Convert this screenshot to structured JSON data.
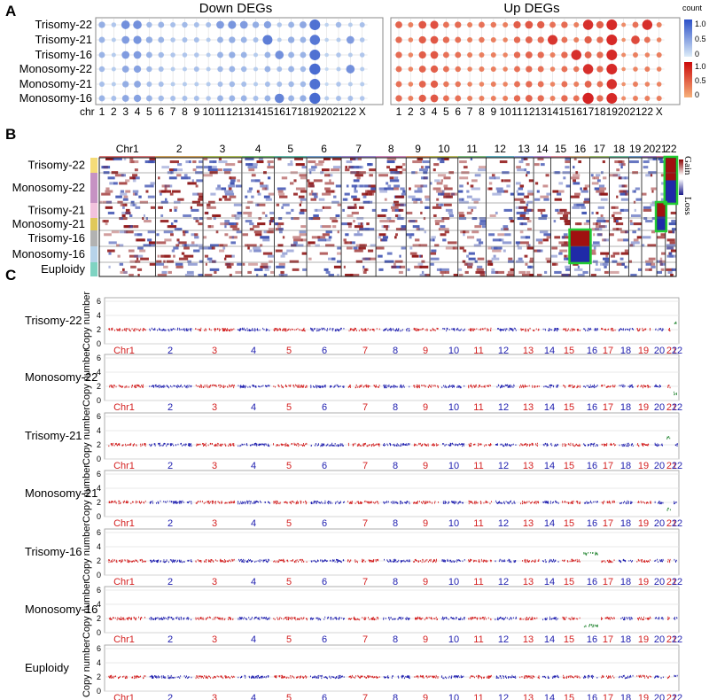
{
  "panels": {
    "a": "A",
    "b": "B",
    "c": "C"
  },
  "colors": {
    "down_high": "#3a5fcd",
    "down_low": "#cfe3f5",
    "up_high": "#d01010",
    "up_low": "#f4a070",
    "gain": "#a01010",
    "loss": "#2323a0",
    "cn_red": "#d42020",
    "cn_blue": "#2020b0",
    "highlight": "#22cc33"
  },
  "chart_data": [
    {
      "type": "scatter",
      "title": "Down DEGs",
      "xlabel": "chr",
      "categories": [
        "1",
        "2",
        "3",
        "4",
        "5",
        "6",
        "7",
        "8",
        "9",
        "10",
        "11",
        "12",
        "13",
        "14",
        "15",
        "16",
        "17",
        "18",
        "19",
        "20",
        "21",
        "22",
        "X"
      ],
      "rows": [
        "Trisomy-22",
        "Trisomy-21",
        "Trisomy-16",
        "Monosomy-22",
        "Monosomy-21",
        "Monosomy-16"
      ],
      "values": [
        [
          0.45,
          0.25,
          0.7,
          0.7,
          0.35,
          0.4,
          0.3,
          0.35,
          0.3,
          0.3,
          0.6,
          0.65,
          0.6,
          0.45,
          0.55,
          0.25,
          0.4,
          0.5,
          0.95,
          0.15,
          0.35,
          0.2,
          0.3
        ],
        [
          0.4,
          0.2,
          0.6,
          0.65,
          0.45,
          0.4,
          0.25,
          0.3,
          0.3,
          0.2,
          0.4,
          0.45,
          0.4,
          0.3,
          0.85,
          0.2,
          0.45,
          0.4,
          0.9,
          0.15,
          0.2,
          0.6,
          0.25
        ],
        [
          0.4,
          0.2,
          0.6,
          0.6,
          0.4,
          0.35,
          0.25,
          0.25,
          0.25,
          0.2,
          0.4,
          0.45,
          0.4,
          0.2,
          0.4,
          0.7,
          0.4,
          0.4,
          0.95,
          0.15,
          0.25,
          0.2,
          0.25
        ],
        [
          0.35,
          0.2,
          0.5,
          0.55,
          0.35,
          0.3,
          0.2,
          0.2,
          0.3,
          0.2,
          0.35,
          0.4,
          0.35,
          0.2,
          0.4,
          0.3,
          0.4,
          0.35,
          1.0,
          0.1,
          0.2,
          0.7,
          0.2
        ],
        [
          0.3,
          0.2,
          0.45,
          0.5,
          0.3,
          0.3,
          0.2,
          0.2,
          0.2,
          0.2,
          0.3,
          0.35,
          0.3,
          0.2,
          0.3,
          0.3,
          0.35,
          0.35,
          0.95,
          0.1,
          0.25,
          0.2,
          0.2
        ],
        [
          0.4,
          0.3,
          0.5,
          0.55,
          0.4,
          0.35,
          0.3,
          0.3,
          0.3,
          0.25,
          0.4,
          0.4,
          0.4,
          0.3,
          0.4,
          0.8,
          0.4,
          0.45,
          1.0,
          0.2,
          0.3,
          0.3,
          0.25
        ]
      ],
      "legend": {
        "title": "count",
        "ticks": [
          "1.0",
          "0.5",
          "0"
        ]
      }
    },
    {
      "type": "scatter",
      "title": "Up DEGs",
      "categories": [
        "1",
        "2",
        "3",
        "4",
        "5",
        "6",
        "7",
        "8",
        "9",
        "10",
        "11",
        "12",
        "13",
        "14",
        "15",
        "16",
        "17",
        "18",
        "19",
        "20",
        "21",
        "22",
        "X"
      ],
      "rows": [
        "Trisomy-22",
        "Trisomy-21",
        "Trisomy-16",
        "Monosomy-22",
        "Monosomy-21",
        "Monosomy-16"
      ],
      "values": [
        [
          0.5,
          0.3,
          0.6,
          0.65,
          0.4,
          0.45,
          0.3,
          0.4,
          0.35,
          0.3,
          0.55,
          0.6,
          0.55,
          0.4,
          0.45,
          0.3,
          0.9,
          0.55,
          0.95,
          0.2,
          0.4,
          0.9,
          0.3
        ],
        [
          0.45,
          0.25,
          0.55,
          0.6,
          0.45,
          0.4,
          0.3,
          0.35,
          0.3,
          0.25,
          0.45,
          0.5,
          0.45,
          0.85,
          0.4,
          0.3,
          0.55,
          0.45,
          0.95,
          0.15,
          0.7,
          0.4,
          0.25
        ],
        [
          0.45,
          0.25,
          0.55,
          0.6,
          0.4,
          0.4,
          0.3,
          0.3,
          0.3,
          0.25,
          0.45,
          0.5,
          0.45,
          0.3,
          0.45,
          0.9,
          0.5,
          0.45,
          0.95,
          0.2,
          0.3,
          0.25,
          0.3
        ],
        [
          0.4,
          0.25,
          0.5,
          0.55,
          0.4,
          0.35,
          0.25,
          0.3,
          0.3,
          0.25,
          0.4,
          0.45,
          0.4,
          0.25,
          0.4,
          0.35,
          0.9,
          0.45,
          0.95,
          0.15,
          0.25,
          0.3,
          0.25
        ],
        [
          0.4,
          0.25,
          0.5,
          0.55,
          0.35,
          0.35,
          0.25,
          0.25,
          0.3,
          0.25,
          0.4,
          0.45,
          0.4,
          0.25,
          0.4,
          0.3,
          0.5,
          0.4,
          0.9,
          0.15,
          0.3,
          0.25,
          0.25
        ],
        [
          0.45,
          0.3,
          0.55,
          0.6,
          0.4,
          0.4,
          0.3,
          0.3,
          0.3,
          0.3,
          0.45,
          0.5,
          0.45,
          0.3,
          0.45,
          0.4,
          1.0,
          0.45,
          0.95,
          0.2,
          0.3,
          0.3,
          0.3
        ]
      ],
      "legend": {
        "ticks": [
          "1.0",
          "0.5",
          "0"
        ]
      }
    },
    {
      "type": "heatmap",
      "chromosomes": [
        "Chr1",
        "2",
        "3",
        "4",
        "5",
        "6",
        "7",
        "8",
        "9",
        "10",
        "11",
        "12",
        "13",
        "14",
        "15",
        "16",
        "17",
        "18",
        "19",
        "20",
        "21",
        "22"
      ],
      "groups": [
        "Trisomy-22",
        "Monosomy-22",
        "Trisomy-21",
        "Monosomy-21",
        "Trisomy-16",
        "Monosomy-16",
        "Euploidy"
      ],
      "group_colors": [
        "#f5dc78",
        "#c692c3",
        "#f2c2dd",
        "#e0c85a",
        "#b2b2b2",
        "#b7d3ea",
        "#7fd3c2"
      ],
      "legend": {
        "gain": "Gain",
        "loss": "Loss"
      },
      "highlights": [
        {
          "chromosome": "22",
          "groups": [
            "Trisomy-22",
            "Monosomy-22"
          ]
        },
        {
          "chromosome": "21",
          "groups": [
            "Trisomy-21",
            "Monosomy-21"
          ]
        },
        {
          "chromosome": "16",
          "groups": [
            "Trisomy-16",
            "Monosomy-16"
          ]
        }
      ]
    },
    {
      "type": "scatter",
      "ylabel": "Copy number",
      "yticks": [
        0,
        2,
        4,
        6
      ],
      "ylim": [
        0,
        6.5
      ],
      "chromosome_labels": [
        "Chr1",
        "2",
        "3",
        "4",
        "5",
        "6",
        "7",
        "8",
        "9",
        "10",
        "11",
        "12",
        "13",
        "14",
        "15",
        "16",
        "17",
        "18",
        "19",
        "20",
        "21",
        "22"
      ],
      "tracks": [
        {
          "name": "Trisomy-22",
          "baseline": 2,
          "altered": "22",
          "altered_value": 3
        },
        {
          "name": "Monosomy-22",
          "baseline": 2,
          "altered": "22",
          "altered_value": 1
        },
        {
          "name": "Trisomy-21",
          "baseline": 2,
          "altered": "21",
          "altered_value": 3
        },
        {
          "name": "Monosomy-21",
          "baseline": 2,
          "altered": "21",
          "altered_value": 1
        },
        {
          "name": "Trisomy-16",
          "baseline": 2,
          "altered": "16",
          "altered_value": 3
        },
        {
          "name": "Monosomy-16",
          "baseline": 2,
          "altered": "16",
          "altered_value": 1
        },
        {
          "name": "Euploidy",
          "baseline": 2,
          "altered": "",
          "altered_value": 2
        }
      ]
    }
  ]
}
